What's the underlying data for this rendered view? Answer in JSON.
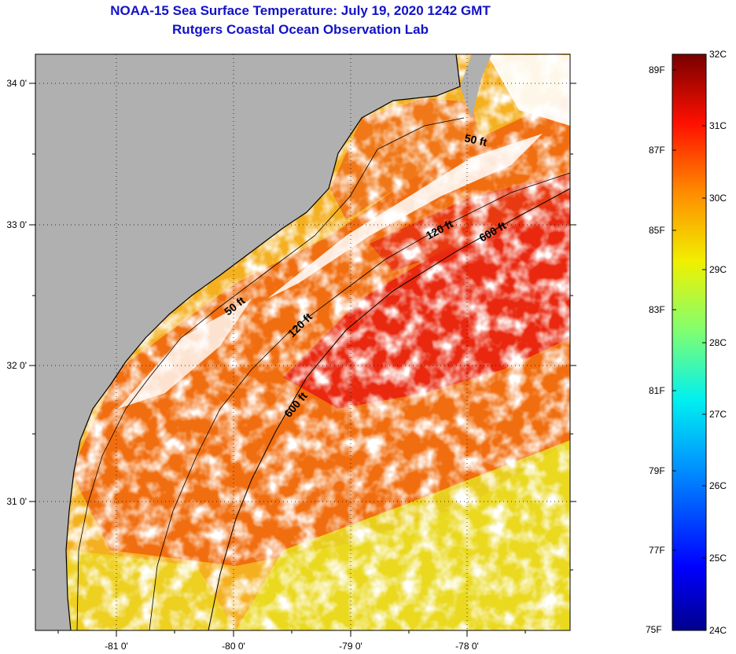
{
  "header": {
    "title_line1": "NOAA-15 Sea Surface Temperature:  July 19, 2020 1242 GMT",
    "title_line2": "Rutgers Coastal Ocean Observation Lab"
  },
  "map": {
    "lon_ticks": [
      "-81 0'",
      "-80 0'",
      "-79 0'",
      "-78 0'"
    ],
    "lat_ticks": [
      "34 0'",
      "33 0'",
      "32 0'",
      "31 0'"
    ],
    "contour_labels": {
      "north_50": "50 ft",
      "north_120": "120 ft",
      "north_600": "600 ft",
      "south_50": "50 ft",
      "south_120": "120 ft",
      "south_600": "600 ft"
    },
    "colors": {
      "land": "#b0b0b0",
      "cloud": "#ffffff",
      "sst_warm": "#f06a10",
      "sst_hot": "#e82010",
      "sst_mid": "#f8b818",
      "sst_cool": "#e8ec20"
    }
  },
  "colorbar": {
    "fahrenheit": [
      "89F",
      "87F",
      "85F",
      "83F",
      "81F",
      "79F",
      "77F",
      "75F"
    ],
    "celsius": [
      "32C",
      "31C",
      "30C",
      "29C",
      "28C",
      "27C",
      "26C",
      "25C",
      "24C"
    ]
  }
}
